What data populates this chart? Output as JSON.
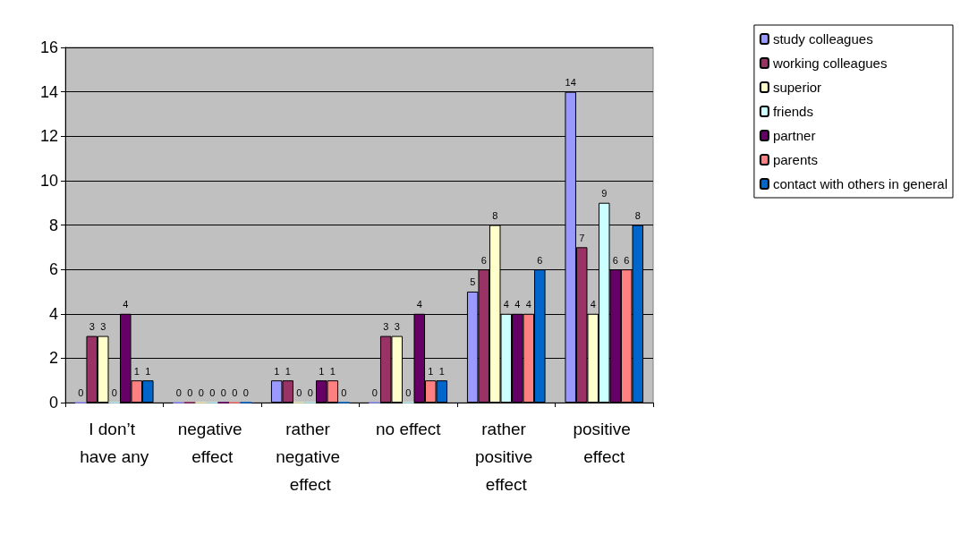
{
  "chart_data": {
    "type": "bar",
    "categories": [
      "I don’t have any",
      "negative effect",
      "rather negative effect",
      "no effect",
      "rather positive effect",
      "positive effect"
    ],
    "series": [
      {
        "name": "study colleagues",
        "color": "#9999ff",
        "values": [
          0,
          0,
          1,
          0,
          5,
          14
        ]
      },
      {
        "name": "working colleagues",
        "color": "#993366",
        "values": [
          3,
          0,
          1,
          3,
          6,
          7
        ]
      },
      {
        "name": "superior",
        "color": "#ffffcc",
        "values": [
          3,
          0,
          0,
          3,
          8,
          4
        ]
      },
      {
        "name": "friends",
        "color": "#ccffff",
        "values": [
          0,
          0,
          0,
          0,
          4,
          9
        ]
      },
      {
        "name": "partner",
        "color": "#660066",
        "values": [
          4,
          0,
          1,
          4,
          4,
          6
        ]
      },
      {
        "name": "parents",
        "color": "#ff8080",
        "values": [
          1,
          0,
          1,
          1,
          4,
          6
        ]
      },
      {
        "name": "contact with others in general",
        "color": "#0066cc",
        "values": [
          1,
          0,
          0,
          1,
          6,
          8
        ]
      }
    ],
    "ylim": [
      0,
      16
    ],
    "yticks": [
      0,
      2,
      4,
      6,
      8,
      10,
      12,
      14,
      16
    ],
    "grid": "y",
    "legend": "top right",
    "data_labels": true
  }
}
